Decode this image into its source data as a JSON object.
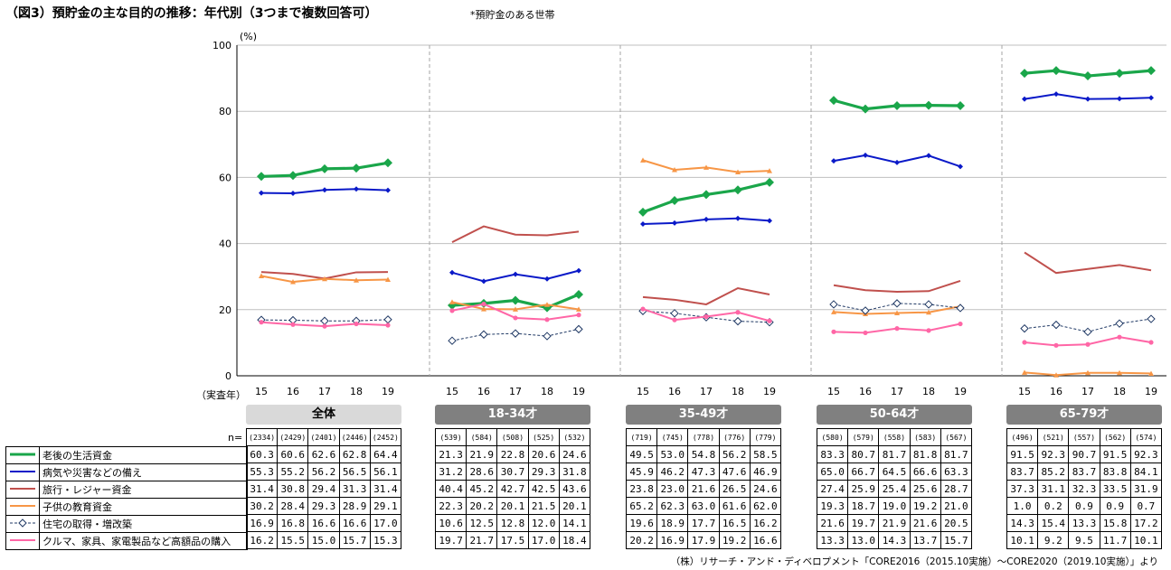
{
  "title": "（図3）預貯金の主な目的の推移：年代別（3つまで複数回答可）",
  "note": "*預貯金のある世帯",
  "source": "（株）リサーチ・アンド・ディベロプメント「CORE2016（2015.10実施）～CORE2020（2019.10実施）」より",
  "n_label": "n=",
  "chart_data": {
    "type": "line",
    "ylabel": "(%)",
    "xlabel": "（実査年）",
    "ylim": [
      0,
      100
    ],
    "yticks": [
      0,
      20,
      40,
      60,
      80,
      100
    ],
    "years": [
      "15",
      "16",
      "17",
      "18",
      "19"
    ],
    "groups": [
      {
        "label": "全体",
        "n": [
          "(2334)",
          "(2429)",
          "(2401)",
          "(2446)",
          "(2452)"
        ],
        "series": [
          [
            60.3,
            60.6,
            62.6,
            62.8,
            64.4
          ],
          [
            55.3,
            55.2,
            56.2,
            56.5,
            56.1
          ],
          [
            31.4,
            30.8,
            29.4,
            31.3,
            31.4
          ],
          [
            30.2,
            28.4,
            29.3,
            28.9,
            29.1
          ],
          [
            16.9,
            16.8,
            16.6,
            16.6,
            17.0
          ],
          [
            16.2,
            15.5,
            15.0,
            15.7,
            15.3
          ]
        ]
      },
      {
        "label": "18-34才",
        "n": [
          "(539)",
          "(584)",
          "(508)",
          "(525)",
          "(532)"
        ],
        "series": [
          [
            21.3,
            21.9,
            22.8,
            20.6,
            24.6
          ],
          [
            31.2,
            28.6,
            30.7,
            29.3,
            31.8
          ],
          [
            40.4,
            45.2,
            42.7,
            42.5,
            43.6
          ],
          [
            22.3,
            20.2,
            20.1,
            21.5,
            20.1
          ],
          [
            10.6,
            12.5,
            12.8,
            12.0,
            14.1
          ],
          [
            19.7,
            21.7,
            17.5,
            17.0,
            18.4
          ]
        ]
      },
      {
        "label": "35-49才",
        "n": [
          "(719)",
          "(745)",
          "(778)",
          "(776)",
          "(779)"
        ],
        "series": [
          [
            49.5,
            53.0,
            54.8,
            56.2,
            58.5
          ],
          [
            45.9,
            46.2,
            47.3,
            47.6,
            46.9
          ],
          [
            23.8,
            23.0,
            21.6,
            26.5,
            24.6
          ],
          [
            65.2,
            62.3,
            63.0,
            61.6,
            62.0
          ],
          [
            19.6,
            18.9,
            17.7,
            16.5,
            16.2
          ],
          [
            20.2,
            16.9,
            17.9,
            19.2,
            16.6
          ]
        ]
      },
      {
        "label": "50-64才",
        "n": [
          "(580)",
          "(579)",
          "(558)",
          "(583)",
          "(567)"
        ],
        "series": [
          [
            83.3,
            80.7,
            81.7,
            81.8,
            81.7
          ],
          [
            65.0,
            66.7,
            64.5,
            66.6,
            63.3
          ],
          [
            27.4,
            25.9,
            25.4,
            25.6,
            28.7
          ],
          [
            19.3,
            18.7,
            19.0,
            19.2,
            21.0
          ],
          [
            21.6,
            19.7,
            21.9,
            21.6,
            20.5
          ],
          [
            13.3,
            13.0,
            14.3,
            13.7,
            15.7
          ]
        ]
      },
      {
        "label": "65-79才",
        "n": [
          "(496)",
          "(521)",
          "(557)",
          "(562)",
          "(574)"
        ],
        "series": [
          [
            91.5,
            92.3,
            90.7,
            91.5,
            92.3
          ],
          [
            83.7,
            85.2,
            83.7,
            83.8,
            84.1
          ],
          [
            37.3,
            31.1,
            32.3,
            33.5,
            31.9
          ],
          [
            1.0,
            0.2,
            0.9,
            0.9,
            0.7
          ],
          [
            14.3,
            15.4,
            13.3,
            15.8,
            17.2
          ],
          [
            10.1,
            9.2,
            9.5,
            11.7,
            10.1
          ]
        ]
      }
    ],
    "series_meta": [
      {
        "name": "老後の生活資金",
        "color": "#1aa64a",
        "marker": "diamond-large"
      },
      {
        "name": "病気や災害などの備え",
        "color": "#0a19c8",
        "marker": "diamond-small"
      },
      {
        "name": "旅行・レジャー資金",
        "color": "#c0504d",
        "marker": "none"
      },
      {
        "name": "子供の教育資金",
        "color": "#f79646",
        "marker": "triangle"
      },
      {
        "name": "住宅の取得・増改築",
        "color": "#1f3864",
        "marker": "diamond-open"
      },
      {
        "name": "クルマ、家具、家電製品など高額品の購入",
        "color": "#ff66a6",
        "marker": "circle"
      }
    ]
  }
}
